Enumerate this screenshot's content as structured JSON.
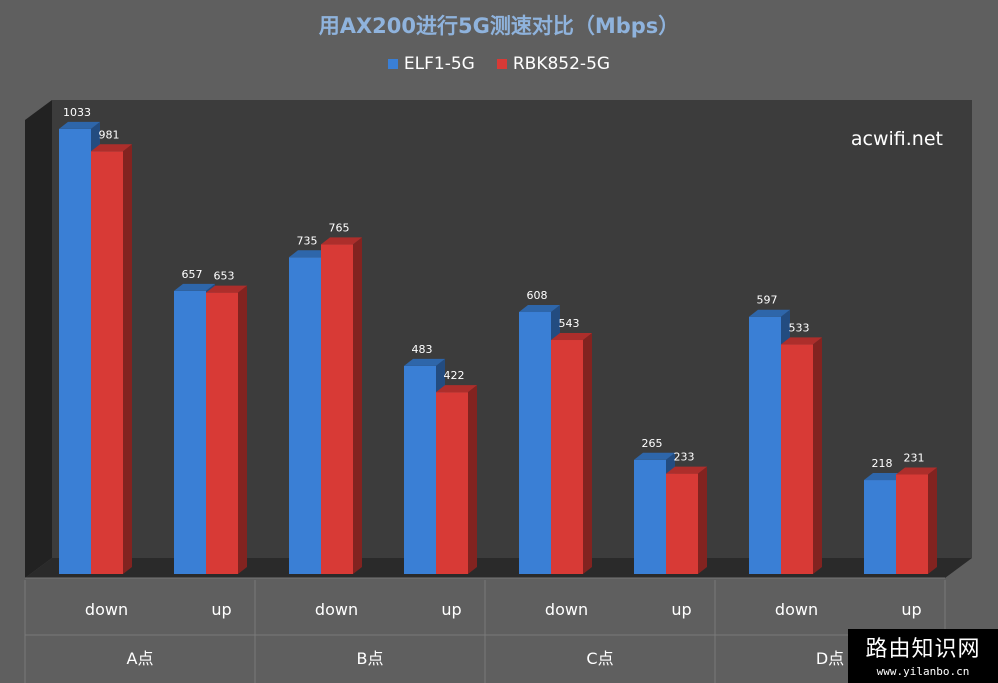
{
  "chart_data": {
    "type": "bar",
    "title": "用AX200进行5G测速对比（Mbps）",
    "groups": [
      "A点",
      "B点",
      "C点",
      "D点"
    ],
    "categories": [
      "down",
      "up",
      "down",
      "up",
      "down",
      "up",
      "down",
      "up"
    ],
    "series": [
      {
        "name": "ELF1-5G",
        "color": "#3a7fd5",
        "values": [
          1033,
          657,
          735,
          483,
          608,
          265,
          597,
          218
        ]
      },
      {
        "name": "RBK852-5G",
        "color": "#d83a36",
        "values": [
          981,
          653,
          765,
          422,
          543,
          233,
          533,
          231
        ]
      }
    ],
    "ylim": [
      0,
      1100
    ],
    "annotation": "acwifi.net"
  },
  "watermark": {
    "name": "路由知识网",
    "url": "www.yilanbo.cn"
  }
}
